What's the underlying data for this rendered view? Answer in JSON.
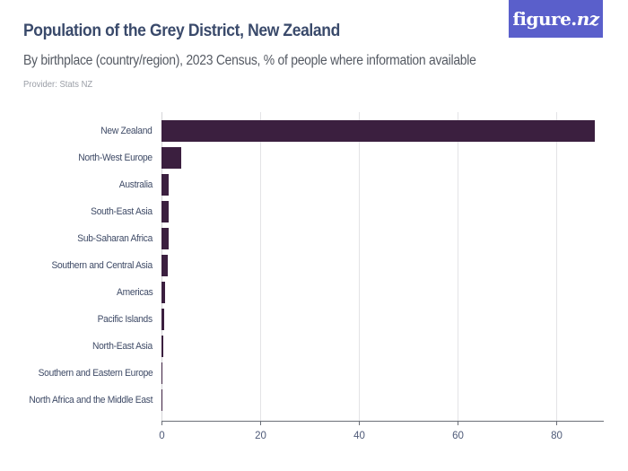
{
  "header": {
    "title": "Population of the Grey District, New Zealand",
    "subtitle": "By birthplace (country/region), 2023 Census, % of people where information available",
    "provider": "Provider: Stats NZ",
    "logo_main": "figure.",
    "logo_nz": "nz"
  },
  "colors": {
    "bar": "#3b1f3f",
    "title": "#3a4a6b",
    "logo_bg": "#5a5fcb"
  },
  "chart_data": {
    "type": "bar",
    "orientation": "horizontal",
    "title": "Population of the Grey District, New Zealand",
    "subtitle": "By birthplace (country/region), 2023 Census, % of people where information available",
    "xlabel": "",
    "ylabel": "",
    "xlim": [
      0,
      90
    ],
    "xticks": [
      "0",
      "20",
      "40",
      "60",
      "80"
    ],
    "grid": true,
    "legend": null,
    "categories": [
      "New Zealand",
      "North-West Europe",
      "Australia",
      "South-East Asia",
      "Sub-Saharan Africa",
      "Southern and Central Asia",
      "Americas",
      "Pacific Islands",
      "North-East Asia",
      "Southern and Eastern Europe",
      "North Africa and the Middle East"
    ],
    "values": [
      87.9,
      4.0,
      1.5,
      1.4,
      1.4,
      1.2,
      0.8,
      0.6,
      0.3,
      0.2,
      0.1
    ]
  }
}
